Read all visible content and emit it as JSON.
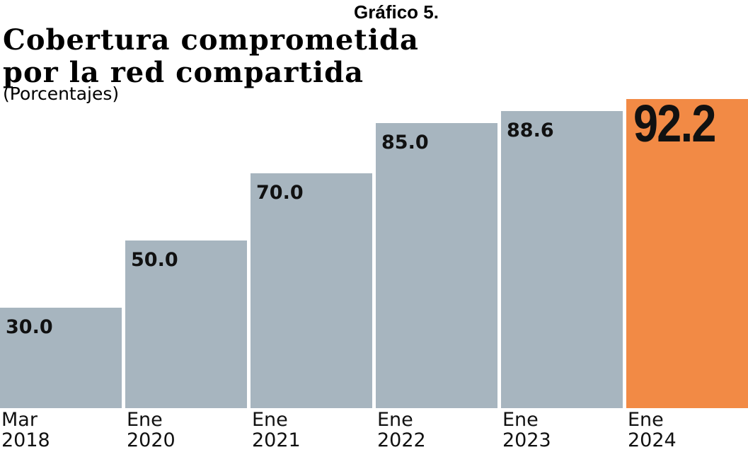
{
  "chart_data": {
    "type": "bar",
    "header": "Gráfico 5.",
    "title": "Cobertura comprometida\npor la red compartida",
    "subtitle": "(Porcentajes)",
    "categories": [
      "Mar\n2018",
      "Ene\n2020",
      "Ene\n2021",
      "Ene\n2022",
      "Ene\n2023",
      "Ene\n2024"
    ],
    "values": [
      30,
      50,
      70,
      85,
      88.6,
      92.2
    ],
    "value_labels": [
      "30.0",
      "50.0",
      "70.0",
      "85.0",
      "88.6",
      "92.2"
    ],
    "colors": [
      "#a7b5bf",
      "#a7b5bf",
      "#a7b5bf",
      "#a7b5bf",
      "#a7b5bf",
      "#f28a45"
    ]
  }
}
